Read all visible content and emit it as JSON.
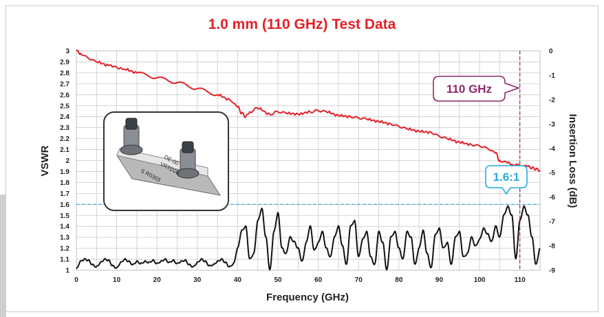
{
  "chart_data": {
    "type": "line",
    "title": "1.0 mm (110 GHz) Test Data",
    "xlabel": "Frequency (GHz)",
    "ylabel_left": "VSWR",
    "ylabel_right": "Insertion Loss (dB)",
    "xlim": [
      0,
      115
    ],
    "ylim_left": [
      1,
      3
    ],
    "ylim_right": [
      -9,
      0
    ],
    "x_ticks": [
      "0",
      "10",
      "20",
      "30",
      "40",
      "50",
      "60",
      "70",
      "80",
      "90",
      "100",
      "110"
    ],
    "y_left_ticks": [
      "1",
      "1.1",
      "1.2",
      "1.3",
      "1.4",
      "1.5",
      "1.6",
      "1.7",
      "1.8",
      "1.9",
      "2",
      "2.1",
      "2.2",
      "2.3",
      "2.4",
      "2.5",
      "2.6",
      "2.7",
      "2.8",
      "2.9",
      "3"
    ],
    "y_right_ticks": [
      "0",
      "-1",
      "-2",
      "-3",
      "-4",
      "-5",
      "-6",
      "-7",
      "-8",
      "-9"
    ],
    "grid": true,
    "series": [
      {
        "axis": "right",
        "color": "#e41f26",
        "x": [
          0,
          1,
          3,
          5,
          8,
          12,
          15,
          20,
          25,
          30,
          35,
          38,
          40,
          41,
          42,
          43,
          45,
          48,
          50,
          52,
          55,
          58,
          60,
          62,
          65,
          68,
          70,
          72,
          75,
          78,
          80,
          82,
          85,
          88,
          90,
          92,
          95,
          98,
          100,
          102,
          104,
          105,
          107,
          108,
          110,
          112,
          113,
          114,
          115
        ],
        "values": [
          0,
          -0.1,
          -0.3,
          -0.45,
          -0.6,
          -0.75,
          -0.9,
          -1.1,
          -1.3,
          -1.55,
          -1.8,
          -2.0,
          -2.3,
          -2.55,
          -2.7,
          -2.5,
          -2.35,
          -2.6,
          -2.5,
          -2.55,
          -2.6,
          -2.5,
          -2.45,
          -2.5,
          -2.65,
          -2.7,
          -2.75,
          -2.8,
          -2.9,
          -3.0,
          -3.1,
          -3.2,
          -3.3,
          -3.35,
          -3.5,
          -3.6,
          -3.75,
          -3.85,
          -3.9,
          -4.0,
          -4.2,
          -4.5,
          -4.6,
          -4.65,
          -4.7,
          -4.75,
          -4.8,
          -4.85,
          -4.9
        ]
      },
      {
        "axis": "left",
        "color": "#111111",
        "x": [
          0,
          1,
          2,
          3,
          4,
          5,
          6,
          7,
          8,
          9,
          10,
          11,
          12,
          13,
          14,
          15,
          16,
          17,
          18,
          19,
          20,
          21,
          22,
          23,
          24,
          25,
          26,
          27,
          28,
          29,
          30,
          31,
          32,
          33,
          34,
          35,
          36,
          37,
          38,
          39,
          40,
          41,
          42,
          43,
          44,
          45,
          46,
          47,
          48,
          49,
          50,
          51,
          52,
          53,
          54,
          55,
          56,
          57,
          58,
          59,
          60,
          61,
          62,
          63,
          64,
          65,
          66,
          67,
          68,
          69,
          70,
          71,
          72,
          73,
          74,
          75,
          76,
          77,
          78,
          79,
          80,
          81,
          82,
          83,
          84,
          85,
          86,
          87,
          88,
          89,
          90,
          91,
          92,
          93,
          94,
          95,
          96,
          97,
          98,
          99,
          100,
          101,
          102,
          103,
          104,
          105,
          106,
          107,
          108,
          109,
          110,
          111,
          112,
          113,
          114,
          115
        ],
        "values": [
          1.01,
          1.08,
          1.1,
          1.09,
          1.05,
          1.03,
          1.07,
          1.1,
          1.09,
          1.04,
          1.02,
          1.07,
          1.1,
          1.08,
          1.05,
          1.08,
          1.06,
          1.08,
          1.07,
          1.09,
          1.06,
          1.08,
          1.1,
          1.07,
          1.09,
          1.06,
          1.08,
          1.09,
          1.05,
          1.03,
          1.07,
          1.1,
          1.08,
          1.04,
          1.05,
          1.08,
          1.1,
          1.07,
          1.03,
          1.06,
          1.2,
          1.36,
          1.4,
          1.1,
          1.15,
          1.45,
          1.56,
          1.3,
          1.0,
          1.35,
          1.52,
          1.2,
          1.15,
          1.3,
          1.26,
          1.2,
          1.08,
          1.25,
          1.4,
          1.18,
          1.25,
          1.35,
          1.2,
          1.12,
          1.3,
          1.4,
          1.22,
          1.05,
          1.4,
          1.45,
          1.12,
          1.28,
          1.35,
          1.12,
          1.05,
          1.35,
          1.25,
          1.0,
          1.3,
          1.35,
          1.2,
          1.1,
          1.35,
          1.3,
          1.05,
          1.2,
          1.36,
          1.15,
          1.02,
          1.32,
          1.38,
          1.2,
          1.25,
          1.05,
          1.3,
          1.35,
          1.12,
          1.15,
          1.3,
          1.22,
          1.28,
          1.38,
          1.33,
          1.26,
          1.4,
          1.3,
          1.5,
          1.58,
          1.5,
          1.1,
          1.45,
          1.58,
          1.5,
          1.3,
          1.05,
          1.2
        ]
      }
    ],
    "annotations": [
      {
        "text": "110 GHz",
        "x": 110,
        "color": "#8e2a69"
      },
      {
        "text": "1.6:1",
        "value": 1.6,
        "color": "#27a9e1"
      }
    ]
  },
  "inset": {
    "label_line1": "DE-00",
    "label_line2": "VRTD20",
    "label_line3": "S R0303"
  }
}
